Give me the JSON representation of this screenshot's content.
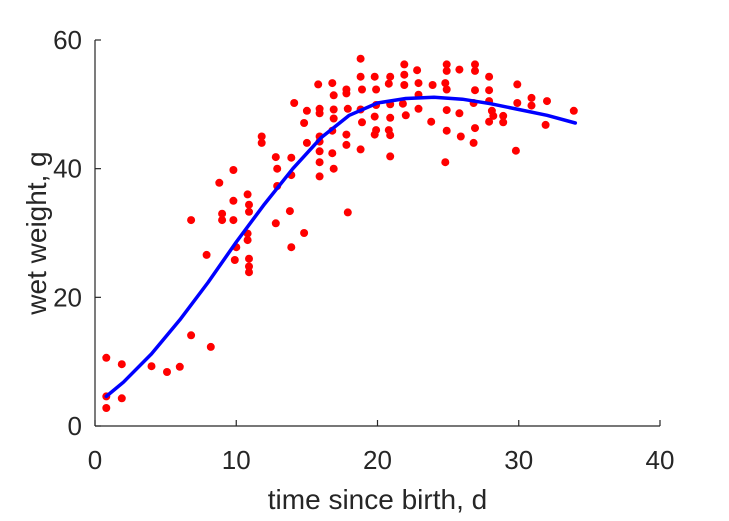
{
  "chart_data": {
    "type": "scatter",
    "title": "",
    "xlabel": "time since birth, d",
    "ylabel": "wet weight, g",
    "xlim": [
      0,
      40
    ],
    "ylim": [
      0,
      60
    ],
    "x_ticks": [
      0,
      10,
      20,
      30,
      40
    ],
    "y_ticks": [
      0,
      20,
      40,
      60
    ],
    "x_tick_labels": [
      "0",
      "10",
      "20",
      "30",
      "40"
    ],
    "y_tick_labels": [
      "0",
      "20",
      "40",
      "60"
    ],
    "grid": false,
    "colors": {
      "points": "#ff0000",
      "curve": "#0000ff",
      "axis": "#262626"
    },
    "series": [
      {
        "kind": "points",
        "points": [
          [
            0.8,
            10.6
          ],
          [
            0.8,
            4.6
          ],
          [
            0.8,
            2.8
          ],
          [
            1.9,
            9.6
          ],
          [
            1.9,
            4.3
          ],
          [
            4,
            9.3
          ],
          [
            5.1,
            8.4
          ],
          [
            6,
            9.2
          ],
          [
            6.8,
            32
          ],
          [
            6.8,
            14.1
          ],
          [
            7.9,
            26.6
          ],
          [
            8.2,
            12.3
          ],
          [
            8.8,
            37.8
          ],
          [
            9,
            33
          ],
          [
            9,
            32
          ],
          [
            9.8,
            39.8
          ],
          [
            9.8,
            35
          ],
          [
            9.8,
            32
          ],
          [
            9.9,
            25.8
          ],
          [
            10,
            27.8
          ],
          [
            10.8,
            36
          ],
          [
            10.9,
            34.4
          ],
          [
            10.9,
            33.3
          ],
          [
            10.8,
            29.9
          ],
          [
            10.8,
            28.9
          ],
          [
            10.9,
            26
          ],
          [
            10.9,
            24.8
          ],
          [
            10.9,
            23.9
          ],
          [
            11.8,
            45
          ],
          [
            11.8,
            44
          ],
          [
            12.8,
            41.8
          ],
          [
            12.9,
            40
          ],
          [
            12.9,
            37.3
          ],
          [
            12.8,
            31.5
          ],
          [
            13.9,
            41.7
          ],
          [
            13.9,
            39
          ],
          [
            13.8,
            33.4
          ],
          [
            13.9,
            27.8
          ],
          [
            14.1,
            50.2
          ],
          [
            14.8,
            47.1
          ],
          [
            14.8,
            30
          ],
          [
            15,
            49
          ],
          [
            15,
            44
          ],
          [
            15.8,
            53.1
          ],
          [
            15.9,
            49.3
          ],
          [
            15.9,
            48.6
          ],
          [
            15.9,
            45
          ],
          [
            15.9,
            44.2
          ],
          [
            15.9,
            42.7
          ],
          [
            15.9,
            41
          ],
          [
            15.9,
            38.8
          ],
          [
            16.8,
            53.3
          ],
          [
            16.9,
            51.4
          ],
          [
            16.9,
            49.2
          ],
          [
            16.9,
            47.8
          ],
          [
            16.8,
            45.9
          ],
          [
            16.8,
            42.4
          ],
          [
            16.9,
            40
          ],
          [
            17.8,
            52.3
          ],
          [
            17.8,
            51.7
          ],
          [
            17.9,
            49.3
          ],
          [
            17.8,
            45.3
          ],
          [
            17.8,
            43.7
          ],
          [
            17.9,
            33.2
          ],
          [
            18.8,
            57.1
          ],
          [
            18.8,
            54.3
          ],
          [
            18.9,
            52.3
          ],
          [
            18.8,
            49.2
          ],
          [
            18.9,
            47.2
          ],
          [
            18.8,
            43
          ],
          [
            19.8,
            54.3
          ],
          [
            19.9,
            52.3
          ],
          [
            19.9,
            49.9
          ],
          [
            19.8,
            48.1
          ],
          [
            19.9,
            46
          ],
          [
            19.8,
            45.3
          ],
          [
            20.9,
            54.3
          ],
          [
            20.8,
            53.2
          ],
          [
            20.9,
            50
          ],
          [
            20.9,
            47.9
          ],
          [
            20.8,
            46
          ],
          [
            20.9,
            45.2
          ],
          [
            20.9,
            41.9
          ],
          [
            21.9,
            56.2
          ],
          [
            21.9,
            54.6
          ],
          [
            21.9,
            53
          ],
          [
            21.8,
            50.1
          ],
          [
            22,
            48.3
          ],
          [
            22.8,
            55.3
          ],
          [
            22.9,
            53.3
          ],
          [
            22.9,
            51.5
          ],
          [
            22.9,
            49.3
          ],
          [
            23.9,
            53
          ],
          [
            23.8,
            47.3
          ],
          [
            24.9,
            56.2
          ],
          [
            24.9,
            55.2
          ],
          [
            24.8,
            53.3
          ],
          [
            24.9,
            52.3
          ],
          [
            24.9,
            49.1
          ],
          [
            24.9,
            45.9
          ],
          [
            24.8,
            41
          ],
          [
            25.8,
            55.4
          ],
          [
            25.8,
            48.6
          ],
          [
            25.9,
            45
          ],
          [
            26.9,
            56.2
          ],
          [
            26.9,
            55.2
          ],
          [
            26.9,
            52.2
          ],
          [
            26.8,
            50.2
          ],
          [
            26.9,
            46.3
          ],
          [
            26.8,
            44
          ],
          [
            27.9,
            54.3
          ],
          [
            27.9,
            52.2
          ],
          [
            27.9,
            50.5
          ],
          [
            27.9,
            47.3
          ],
          [
            28.1,
            49
          ],
          [
            28.2,
            48.2
          ],
          [
            28.9,
            48.2
          ],
          [
            28.9,
            47.2
          ],
          [
            29.9,
            53.1
          ],
          [
            29.9,
            50.2
          ],
          [
            29.8,
            42.8
          ],
          [
            30.9,
            51
          ],
          [
            30.9,
            49.8
          ],
          [
            32,
            50.5
          ],
          [
            31.9,
            46.8
          ],
          [
            33.9,
            49
          ]
        ]
      },
      {
        "kind": "line",
        "points": [
          [
            0.8,
            4.6
          ],
          [
            2,
            6.8
          ],
          [
            4,
            11.2
          ],
          [
            6,
            16.5
          ],
          [
            8,
            22.3
          ],
          [
            10,
            28.6
          ],
          [
            12,
            34.5
          ],
          [
            14,
            40
          ],
          [
            16,
            44.8
          ],
          [
            18,
            48.3
          ],
          [
            20,
            50.2
          ],
          [
            22,
            50.9
          ],
          [
            24,
            51.1
          ],
          [
            26,
            50.8
          ],
          [
            28,
            50.1
          ],
          [
            30,
            49.2
          ],
          [
            32,
            48.3
          ],
          [
            34,
            47.1
          ]
        ]
      }
    ]
  }
}
